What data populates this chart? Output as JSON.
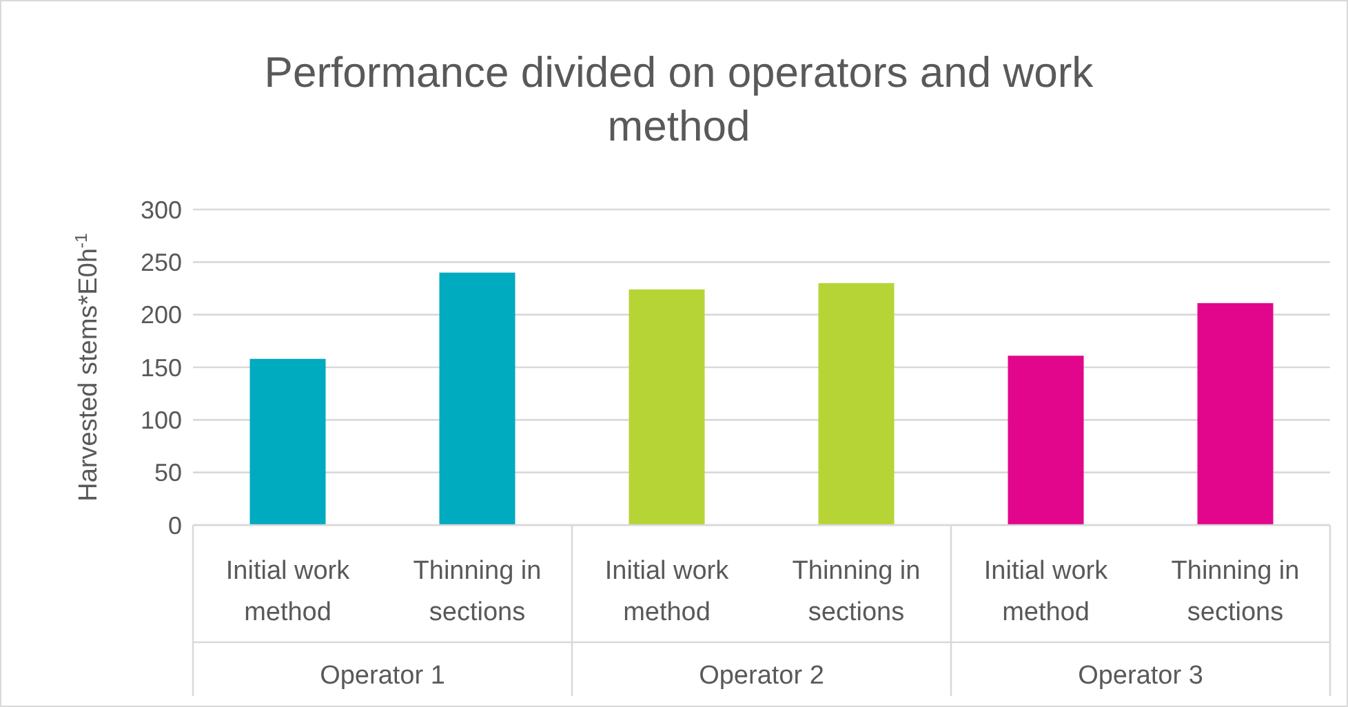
{
  "chart_data": {
    "type": "bar",
    "title": "Performance divided on operators and work method",
    "ylabel": "Harvested stems*E0h$^{-1}$",
    "categories": [
      "Initial work method",
      "Thinning in sections",
      "Initial work method",
      "Thinning in sections",
      "Initial work method",
      "Thinning in sections"
    ],
    "values": [
      158,
      240,
      224,
      230,
      161,
      211
    ],
    "colors": [
      "#00aabf",
      "#00aabf",
      "#b7d437",
      "#b7d437",
      "#e2068c",
      "#e2068c"
    ],
    "annotations": [
      "Operator 1",
      "Operator 2",
      "Operator 3"
    ],
    "ylim": [
      0,
      300
    ],
    "yticks": [
      0,
      50,
      100,
      150,
      200,
      250,
      300
    ],
    "grid": "y"
  }
}
